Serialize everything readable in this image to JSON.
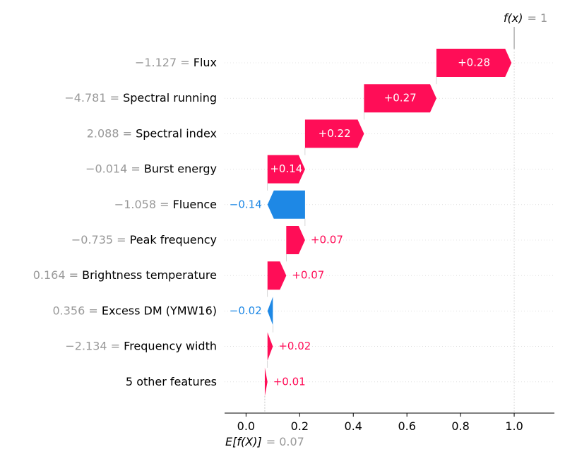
{
  "chart_data": {
    "type": "waterfall",
    "base_value": 0.07,
    "base_label": "E[f(X)]",
    "base_value_text": "= 0.07",
    "output_value": 1,
    "output_label": "f(x)",
    "output_value_text": "= 1",
    "xlim": [
      -0.08,
      1.15
    ],
    "xticks": [
      "0.0",
      "0.2",
      "0.4",
      "0.6",
      "0.8",
      "1.0"
    ],
    "xtick_values": [
      0.0,
      0.2,
      0.4,
      0.6,
      0.8,
      1.0
    ],
    "features": [
      {
        "value": "−1.127",
        "name": "Flux",
        "contribution": 0.28,
        "label": "+0.28"
      },
      {
        "value": "−4.781",
        "name": "Spectral running",
        "contribution": 0.27,
        "label": "+0.27"
      },
      {
        "value": "2.088",
        "name": "Spectral index",
        "contribution": 0.22,
        "label": "+0.22"
      },
      {
        "value": "−0.014",
        "name": "Burst energy",
        "contribution": 0.14,
        "label": "+0.14"
      },
      {
        "value": "−1.058",
        "name": "Fluence",
        "contribution": -0.14,
        "label": "−0.14"
      },
      {
        "value": "−0.735",
        "name": "Peak frequency",
        "contribution": 0.07,
        "label": "+0.07"
      },
      {
        "value": "0.164",
        "name": "Brightness temperature",
        "contribution": 0.07,
        "label": "+0.07"
      },
      {
        "value": "0.356",
        "name": "Excess DM (YMW16)",
        "contribution": -0.02,
        "label": "−0.02"
      },
      {
        "value": "−2.134",
        "name": "Frequency width",
        "contribution": 0.02,
        "label": "+0.02"
      },
      {
        "value": "",
        "name": "5 other features",
        "contribution": 0.01,
        "label": "+0.01"
      }
    ],
    "colors": {
      "positive": "#ff0d57",
      "negative": "#1e88e5",
      "muted_text": "#999999"
    }
  }
}
